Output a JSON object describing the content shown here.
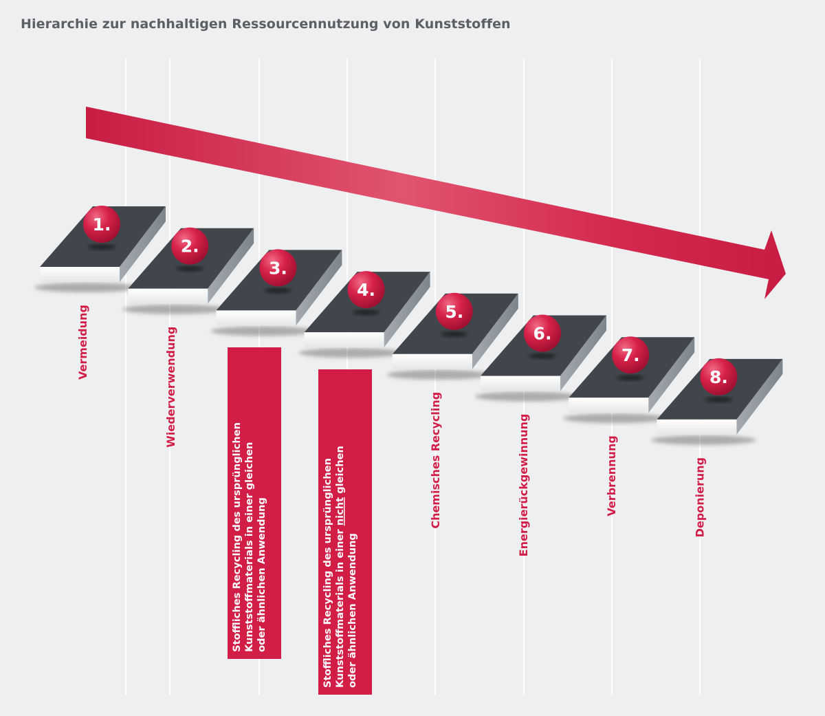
{
  "title": "Hierarchie zur nachhaltigen Ressourcennutzung von Kunststoffen",
  "colors": {
    "accent": "#d21e47",
    "step_top": "#3f454a",
    "step_front": "#ffffff",
    "step_side": "#8f979e",
    "divider": "#ffffff",
    "title": "#5b5e62"
  },
  "steps": [
    {
      "number": "1.",
      "label": [
        "Vermeidung"
      ],
      "highlight": false
    },
    {
      "number": "2.",
      "label": [
        "Wiederverwendung"
      ],
      "highlight": false
    },
    {
      "number": "3.",
      "label": [
        "Stoffliches Recycling des ursprünglichen",
        "Kunststoffmaterials in einer gleichen",
        "oder ähnlichen Anwendung"
      ],
      "highlight": true,
      "underline_word": ""
    },
    {
      "number": "4.",
      "label": [
        "Stoffliches Recycling des ursprünglichen",
        "Kunststoffmaterials in einer nicht gleichen",
        "oder ähnlichen Anwendung"
      ],
      "highlight": true,
      "underline_word": "nicht"
    },
    {
      "number": "5.",
      "label": [
        "Chemisches Recycling"
      ],
      "highlight": false
    },
    {
      "number": "6.",
      "label": [
        "Energierückgewinnung"
      ],
      "highlight": false
    },
    {
      "number": "7.",
      "label": [
        "Verbrennung"
      ],
      "highlight": false
    },
    {
      "number": "8.",
      "label": [
        "Deponierung"
      ],
      "highlight": false
    }
  ]
}
